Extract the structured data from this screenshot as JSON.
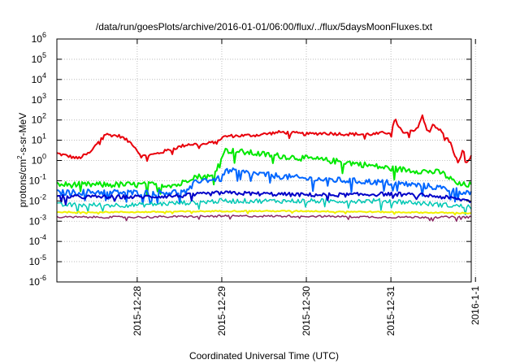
{
  "chart_data": {
    "type": "line",
    "title": "/data/run/goesPlots/archive/2016-01-01/06:00/flux/../flux/5daysMoonFluxes.txt",
    "xlabel": "Coordinated Universal Time (UTC)",
    "ylabel": {
      "base": "protons/cm",
      "sup": "2",
      "rest": "-s-sr-MeV"
    },
    "y_scale": "log",
    "ylim_exp": [
      -6,
      6
    ],
    "y_ticks": [
      {
        "exp": -6,
        "label": "-6"
      },
      {
        "exp": -5,
        "label": "-5"
      },
      {
        "exp": -4,
        "label": "-4"
      },
      {
        "exp": -3,
        "label": "-3"
      },
      {
        "exp": -2,
        "label": "-2"
      },
      {
        "exp": -1,
        "label": "-1"
      },
      {
        "exp": 0,
        "label": "0"
      },
      {
        "exp": 1,
        "label": "1"
      },
      {
        "exp": 2,
        "label": "2"
      },
      {
        "exp": 3,
        "label": "3"
      },
      {
        "exp": 4,
        "label": "4"
      },
      {
        "exp": 5,
        "label": "5"
      },
      {
        "exp": 6,
        "label": "6"
      }
    ],
    "y_tick_base": "10",
    "xlim_days": [
      -3.95,
      0.95
    ],
    "x_ticks": [
      {
        "day": -3,
        "label": "2015-12-28"
      },
      {
        "day": -2,
        "label": "2015-12-29"
      },
      {
        "day": -1,
        "label": "2015-12-30"
      },
      {
        "day": 0,
        "label": "2015-12-31"
      },
      {
        "day": 1,
        "label": "2016-1-1"
      }
    ],
    "grid": true,
    "series": [
      {
        "color": "#e8000b",
        "width": 2,
        "noise": 0.08,
        "points": [
          [
            -3.95,
            0.35
          ],
          [
            -3.7,
            0.1
          ],
          [
            -3.55,
            0.4
          ],
          [
            -3.4,
            1.3
          ],
          [
            -3.2,
            1.2
          ],
          [
            -3.05,
            0.8
          ],
          [
            -2.95,
            0.2
          ],
          [
            -2.8,
            0.3
          ],
          [
            -2.6,
            0.55
          ],
          [
            -2.4,
            0.8
          ],
          [
            -2.2,
            0.8
          ],
          [
            -2.1,
            0.9
          ],
          [
            -1.95,
            1.2
          ],
          [
            -1.6,
            1.25
          ],
          [
            -1.3,
            1.4
          ],
          [
            -1.0,
            1.3
          ],
          [
            -0.8,
            1.35
          ],
          [
            -0.5,
            1.3
          ],
          [
            -0.2,
            1.3
          ],
          [
            0.0,
            1.4
          ],
          [
            0.05,
            2.0
          ],
          [
            0.15,
            1.3
          ],
          [
            0.3,
            1.5
          ],
          [
            0.38,
            2.3
          ],
          [
            0.45,
            1.4
          ],
          [
            0.5,
            1.8
          ],
          [
            0.6,
            1.4
          ],
          [
            0.7,
            0.9
          ],
          [
            0.8,
            -0.2
          ],
          [
            0.85,
            0.6
          ],
          [
            0.9,
            -0.2
          ],
          [
            0.95,
            0.3
          ]
        ]
      },
      {
        "color": "#00e800",
        "width": 2,
        "noise": 0.15,
        "points": [
          [
            -3.95,
            -1.2
          ],
          [
            -3.5,
            -1.2
          ],
          [
            -3.0,
            -1.2
          ],
          [
            -2.5,
            -1.2
          ],
          [
            -2.35,
            -0.8
          ],
          [
            -2.1,
            -0.8
          ],
          [
            -2.0,
            0.3
          ],
          [
            -1.95,
            0.5
          ],
          [
            -1.5,
            0.3
          ],
          [
            -1.0,
            0.1
          ],
          [
            -0.5,
            -0.1
          ],
          [
            0.0,
            -0.4
          ],
          [
            0.3,
            -0.5
          ],
          [
            0.6,
            -0.6
          ],
          [
            0.7,
            -0.9
          ],
          [
            0.8,
            -1.2
          ],
          [
            0.95,
            -1.2
          ]
        ]
      },
      {
        "color": "#0066ff",
        "width": 2,
        "noise": 0.15,
        "points": [
          [
            -3.95,
            -1.6
          ],
          [
            -3.5,
            -1.55
          ],
          [
            -3.0,
            -1.6
          ],
          [
            -2.4,
            -1.55
          ],
          [
            -2.3,
            -1.0
          ],
          [
            -2.0,
            -0.9
          ],
          [
            -1.95,
            -0.5
          ],
          [
            -1.5,
            -0.7
          ],
          [
            -1.0,
            -0.9
          ],
          [
            -0.5,
            -1.0
          ],
          [
            0.0,
            -1.1
          ],
          [
            0.5,
            -1.3
          ],
          [
            0.95,
            -1.6
          ]
        ]
      },
      {
        "color": "#00c8b4",
        "width": 1.5,
        "noise": 0.12,
        "points": [
          [
            -3.95,
            -2.2
          ],
          [
            -3.0,
            -2.2
          ],
          [
            -2.0,
            -2.0
          ],
          [
            -1.0,
            -2.0
          ],
          [
            0.0,
            -2.0
          ],
          [
            0.95,
            -2.3
          ]
        ]
      },
      {
        "color": "#0000c8",
        "width": 2,
        "noise": 0.1,
        "points": [
          [
            -3.95,
            -1.8
          ],
          [
            -3.0,
            -1.8
          ],
          [
            -2.5,
            -1.75
          ],
          [
            -2.0,
            -1.6
          ],
          [
            -1.5,
            -1.65
          ],
          [
            -1.0,
            -1.7
          ],
          [
            -0.5,
            -1.7
          ],
          [
            0.0,
            -1.65
          ],
          [
            0.5,
            -1.75
          ],
          [
            0.95,
            -2.0
          ]
        ]
      },
      {
        "color": "#f0f000",
        "width": 2,
        "noise": 0.03,
        "points": [
          [
            -3.95,
            -2.55
          ],
          [
            -3.0,
            -2.55
          ],
          [
            -2.0,
            -2.5
          ],
          [
            -1.0,
            -2.5
          ],
          [
            0.0,
            -2.55
          ],
          [
            0.95,
            -2.6
          ]
        ]
      },
      {
        "color": "#8c2864",
        "width": 1.5,
        "noise": 0.05,
        "points": [
          [
            -3.95,
            -2.8
          ],
          [
            -3.0,
            -2.8
          ],
          [
            -2.0,
            -2.75
          ],
          [
            -1.0,
            -2.75
          ],
          [
            0.0,
            -2.8
          ],
          [
            0.95,
            -2.8
          ]
        ]
      }
    ]
  }
}
